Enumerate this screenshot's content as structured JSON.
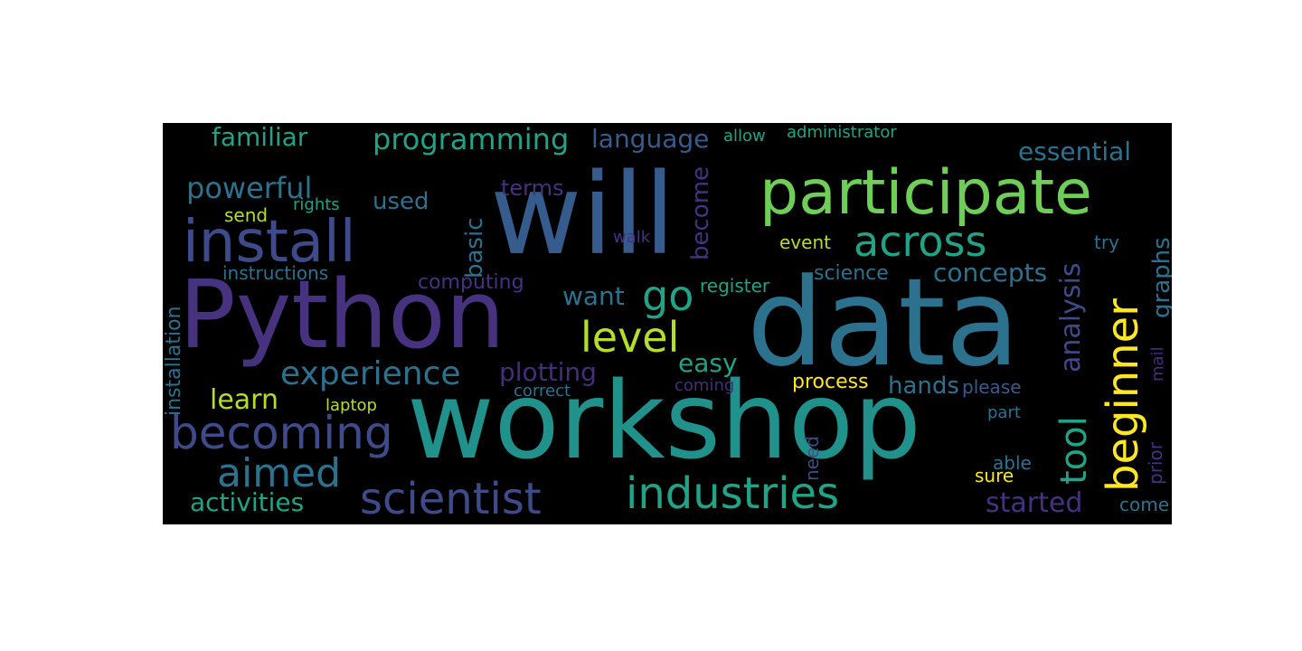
{
  "wordcloud": {
    "words": {
      "will": "will",
      "data": "data",
      "workshop": "workshop",
      "python": "Python",
      "participate": "participate",
      "install": "install",
      "across": "across",
      "industries": "industries",
      "scientist": "scientist",
      "becoming": "becoming",
      "beginner": "beginner",
      "tool": "tool",
      "aimed": "aimed",
      "experience": "experience",
      "level": "level",
      "go": "go",
      "programming": "programming",
      "familiar": "familiar",
      "language": "language",
      "powerful": "powerful",
      "essential": "essential",
      "learn": "learn",
      "analysis": "analysis",
      "plotting": "plotting",
      "easy": "easy",
      "started": "started",
      "concepts": "concepts",
      "want": "want",
      "hands": "hands",
      "activities": "activities",
      "become": "become",
      "basic": "basic",
      "terms": "terms",
      "used": "used",
      "graphs": "graphs",
      "computing": "computing",
      "instructions": "instructions",
      "installation": "installation",
      "science": "science",
      "register": "register",
      "process": "process",
      "please": "please",
      "event": "event",
      "try": "try",
      "send": "send",
      "rights": "rights",
      "walk": "walk",
      "allow": "allow",
      "administrator": "administrator",
      "coming": "coming",
      "correct": "correct",
      "laptop": "laptop",
      "part": "part",
      "need": "need",
      "able": "able",
      "sure": "sure",
      "prior": "prior",
      "come": "come",
      "mail": "mail"
    },
    "colors": {
      "dark_purple": "#46327e",
      "indigo": "#3e4a89",
      "blue": "#365c8d",
      "steel": "#2c728e",
      "teal": "#21918c",
      "green_teal": "#20a386",
      "green": "#35b779",
      "light_green": "#6ece58",
      "lime": "#b5de2b",
      "yellow": "#fde725",
      "purple": "#472d7b"
    }
  }
}
